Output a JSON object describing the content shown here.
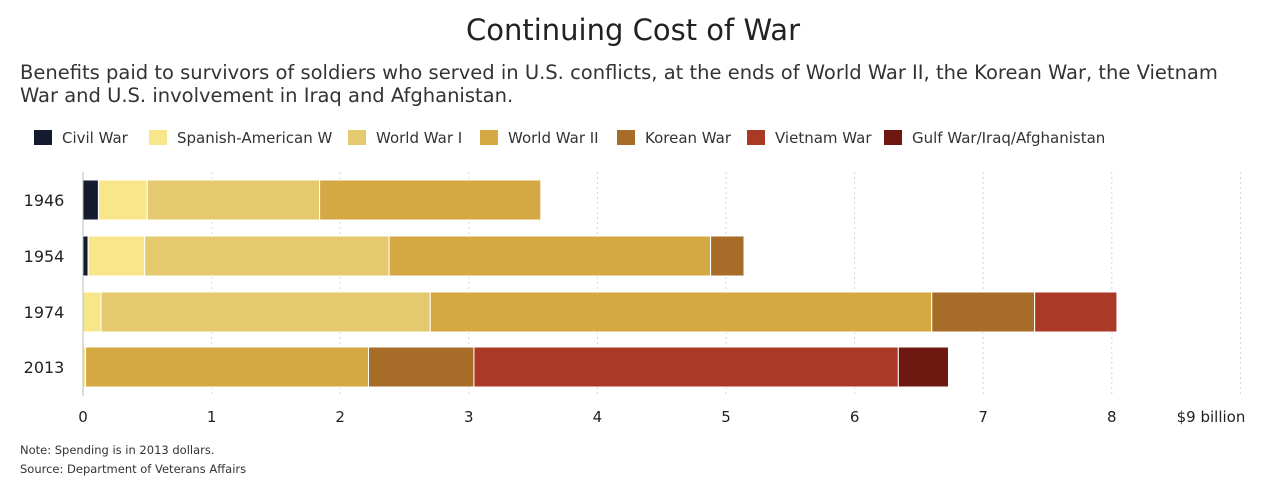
{
  "chart_data": {
    "type": "bar",
    "orientation": "horizontal",
    "stacked": true,
    "title": "Continuing Cost of War",
    "subtitle": "Benefits paid to survivors of soldiers who served in U.S. conflicts, at the ends of World War II, the Korean War, the Vietnam War and U.S. involvement in Iraq and Afghanistan.",
    "categories": [
      "1946",
      "1954",
      "1974",
      "2013"
    ],
    "series": [
      {
        "name": "Civil War",
        "color": "#141b2e",
        "values": [
          0.12,
          0.04,
          0,
          0
        ]
      },
      {
        "name": "Spanish-American W",
        "color": "#f8e68a",
        "values": [
          0.38,
          0.44,
          0.14,
          0.02
        ]
      },
      {
        "name": "World War I",
        "color": "#e4c96e",
        "values": [
          1.34,
          1.9,
          2.56,
          0
        ]
      },
      {
        "name": "World War II",
        "color": "#d4a843",
        "values": [
          1.72,
          2.5,
          3.9,
          2.2
        ]
      },
      {
        "name": "Korean War",
        "color": "#a66c28",
        "values": [
          0,
          0.26,
          0.8,
          0.82
        ]
      },
      {
        "name": "Vietnam War",
        "color": "#aa3a26",
        "values": [
          0,
          0,
          0.64,
          3.3
        ]
      },
      {
        "name": "Gulf War/Iraq/Afghanistan",
        "color": "#6e1811",
        "values": [
          0,
          0,
          0,
          0.39
        ]
      }
    ],
    "xlim": [
      0,
      9
    ],
    "xticks": [
      0,
      1,
      2,
      3,
      4,
      5,
      6,
      7,
      8,
      9
    ],
    "xtick_labels": [
      "0",
      "1",
      "2",
      "3",
      "4",
      "5",
      "6",
      "7",
      "8",
      "$9 billion"
    ],
    "grid": true,
    "legend_position": "top-left",
    "note": "Note: Spending is in 2013 dollars.",
    "source": "Source: Department of Veterans Affairs"
  }
}
